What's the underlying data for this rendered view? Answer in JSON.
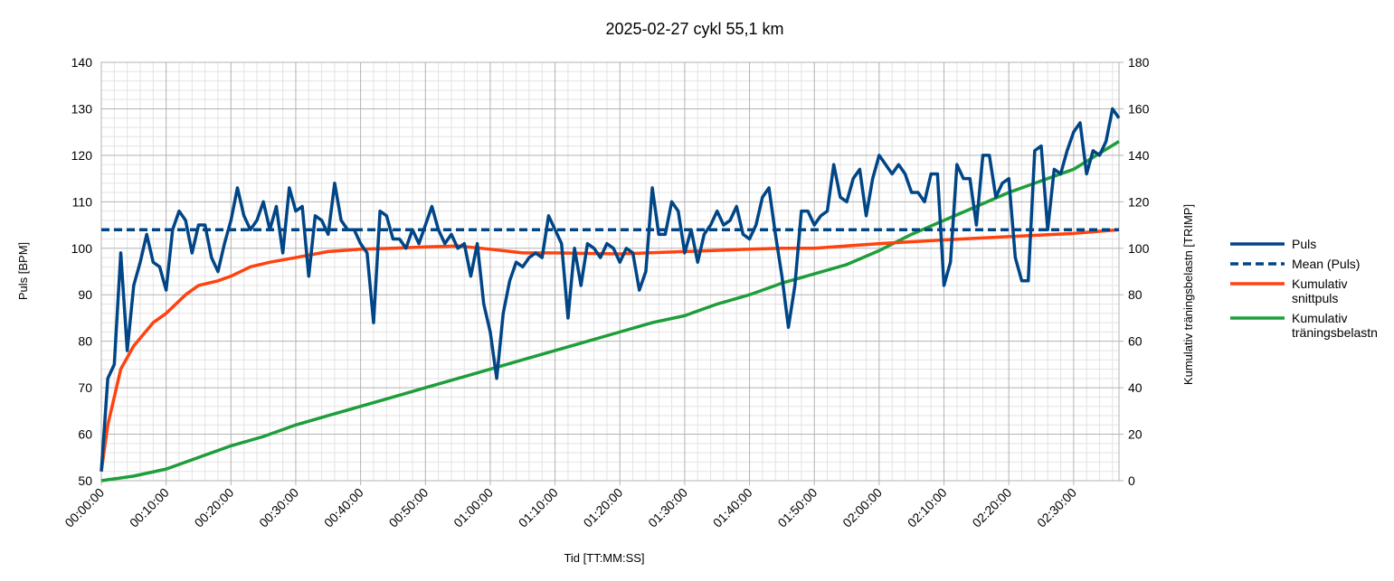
{
  "chart_data": {
    "type": "line",
    "title": "2025-02-27 cykl 55,1 km",
    "x_label": "Tid [TT:MM:SS]",
    "y_label": "Puls [BPM]",
    "y2_label": "Kumulativ träningsbelastn [TRIMP]",
    "xlim": [
      0,
      157
    ],
    "ylim": [
      50,
      140
    ],
    "y2lim": [
      0,
      180
    ],
    "xticks": [
      {
        "value": 0,
        "label": "00:00:00"
      },
      {
        "value": 10,
        "label": "00:10:00"
      },
      {
        "value": 20,
        "label": "00:20:00"
      },
      {
        "value": 30,
        "label": "00:30:00"
      },
      {
        "value": 40,
        "label": "00:40:00"
      },
      {
        "value": 50,
        "label": "00:50:00"
      },
      {
        "value": 60,
        "label": "01:00:00"
      },
      {
        "value": 70,
        "label": "01:10:00"
      },
      {
        "value": 80,
        "label": "01:20:00"
      },
      {
        "value": 90,
        "label": "01:30:00"
      },
      {
        "value": 100,
        "label": "01:40:00"
      },
      {
        "value": 110,
        "label": "01:50:00"
      },
      {
        "value": 120,
        "label": "02:00:00"
      },
      {
        "value": 130,
        "label": "02:10:00"
      },
      {
        "value": 140,
        "label": "02:20:00"
      },
      {
        "value": 150,
        "label": "02:30:00"
      }
    ],
    "yticks": [
      50,
      60,
      70,
      80,
      90,
      100,
      110,
      120,
      130,
      140
    ],
    "y2ticks": [
      0,
      20,
      40,
      60,
      80,
      100,
      120,
      140,
      160,
      180
    ],
    "grid": true,
    "minor_grid": true,
    "legend": "right",
    "series": [
      {
        "name": "Puls",
        "color": "#004586",
        "axis": "y",
        "x": [
          0,
          1,
          2,
          3,
          4,
          5,
          6,
          7,
          8,
          9,
          10,
          11,
          12,
          13,
          14,
          15,
          16,
          17,
          18,
          19,
          20,
          21,
          22,
          23,
          24,
          25,
          26,
          27,
          28,
          29,
          30,
          31,
          32,
          33,
          34,
          35,
          36,
          37,
          38,
          39,
          40,
          41,
          42,
          43,
          44,
          45,
          46,
          47,
          48,
          49,
          50,
          51,
          52,
          53,
          54,
          55,
          56,
          57,
          58,
          59,
          60,
          61,
          62,
          63,
          64,
          65,
          66,
          67,
          68,
          69,
          70,
          71,
          72,
          73,
          74,
          75,
          76,
          77,
          78,
          79,
          80,
          81,
          82,
          83,
          84,
          85,
          86,
          87,
          88,
          89,
          90,
          91,
          92,
          93,
          94,
          95,
          96,
          97,
          98,
          99,
          100,
          101,
          102,
          103,
          104,
          105,
          106,
          107,
          108,
          109,
          110,
          111,
          112,
          113,
          114,
          115,
          116,
          117,
          118,
          119,
          120,
          121,
          122,
          123,
          124,
          125,
          126,
          127,
          128,
          129,
          130,
          131,
          132,
          133,
          134,
          135,
          136,
          137,
          138,
          139,
          140,
          141,
          142,
          143,
          144,
          145,
          146,
          147,
          148,
          149,
          150,
          151,
          152,
          153,
          154,
          155,
          156,
          157
        ],
        "values": [
          52,
          72,
          75,
          99,
          78,
          92,
          97,
          103,
          97,
          96,
          91,
          104,
          108,
          106,
          99,
          105,
          105,
          98,
          95,
          101,
          106,
          113,
          107,
          104,
          106,
          110,
          104,
          109,
          99,
          113,
          108,
          109,
          94,
          107,
          106,
          103,
          114,
          106,
          104,
          104,
          101,
          99,
          84,
          108,
          107,
          102,
          102,
          100,
          104,
          101,
          105,
          109,
          104,
          101,
          103,
          100,
          101,
          94,
          101,
          88,
          82,
          72,
          86,
          93,
          97,
          96,
          98,
          99,
          98,
          107,
          104,
          101,
          85,
          100,
          92,
          101,
          100,
          98,
          101,
          100,
          97,
          100,
          99,
          91,
          95,
          113,
          103,
          103,
          110,
          108,
          99,
          104,
          97,
          103,
          105,
          108,
          105,
          106,
          109,
          103,
          102,
          105,
          111,
          113,
          103,
          94,
          83,
          92,
          108,
          108,
          105,
          107,
          108,
          118,
          111,
          110,
          115,
          117,
          107,
          115,
          120,
          118,
          116,
          118,
          116,
          112,
          112,
          110,
          116,
          116,
          92,
          97,
          118,
          115,
          115,
          105,
          120,
          120,
          111,
          114,
          115,
          98,
          93,
          93,
          121,
          122,
          104,
          117,
          116,
          121,
          125,
          127,
          116,
          121,
          120,
          123,
          130,
          128
        ]
      },
      {
        "name": "Mean (Puls)",
        "color": "#004586",
        "axis": "y",
        "dashed": true,
        "x": [
          0,
          157
        ],
        "values": [
          104,
          104
        ]
      },
      {
        "name": "Kumulativ snittpuls",
        "color": "#ff420e",
        "axis": "y",
        "x": [
          0,
          1,
          3,
          5,
          8,
          10,
          13,
          15,
          18,
          20,
          23,
          26,
          30,
          35,
          40,
          45,
          50,
          55,
          60,
          65,
          70,
          80,
          90,
          100,
          105,
          110,
          120,
          130,
          140,
          150,
          157
        ],
        "values": [
          52,
          62,
          74,
          79,
          84,
          86,
          90,
          92,
          93,
          94,
          96,
          97,
          98,
          99.3,
          99.8,
          100,
          100.3,
          100.5,
          99.8,
          99,
          99,
          98.8,
          99.3,
          99.8,
          100,
          100,
          101,
          101.8,
          102.5,
          103.2,
          104
        ]
      },
      {
        "name": "Kumulativ träningsbelastn",
        "color": "#1e9e3a",
        "axis": "y2",
        "x": [
          0,
          5,
          10,
          15,
          20,
          25,
          30,
          35,
          40,
          45,
          50,
          55,
          60,
          65,
          70,
          75,
          80,
          85,
          90,
          95,
          100,
          105,
          110,
          115,
          120,
          125,
          130,
          135,
          140,
          145,
          150,
          157
        ],
        "values": [
          0,
          2,
          5,
          10,
          15,
          19,
          24,
          28,
          32,
          36,
          40,
          44,
          48,
          52,
          56,
          60,
          64,
          68,
          71,
          76,
          80,
          85,
          89,
          93,
          99,
          106,
          112,
          118,
          124,
          129,
          134,
          146
        ]
      }
    ]
  }
}
